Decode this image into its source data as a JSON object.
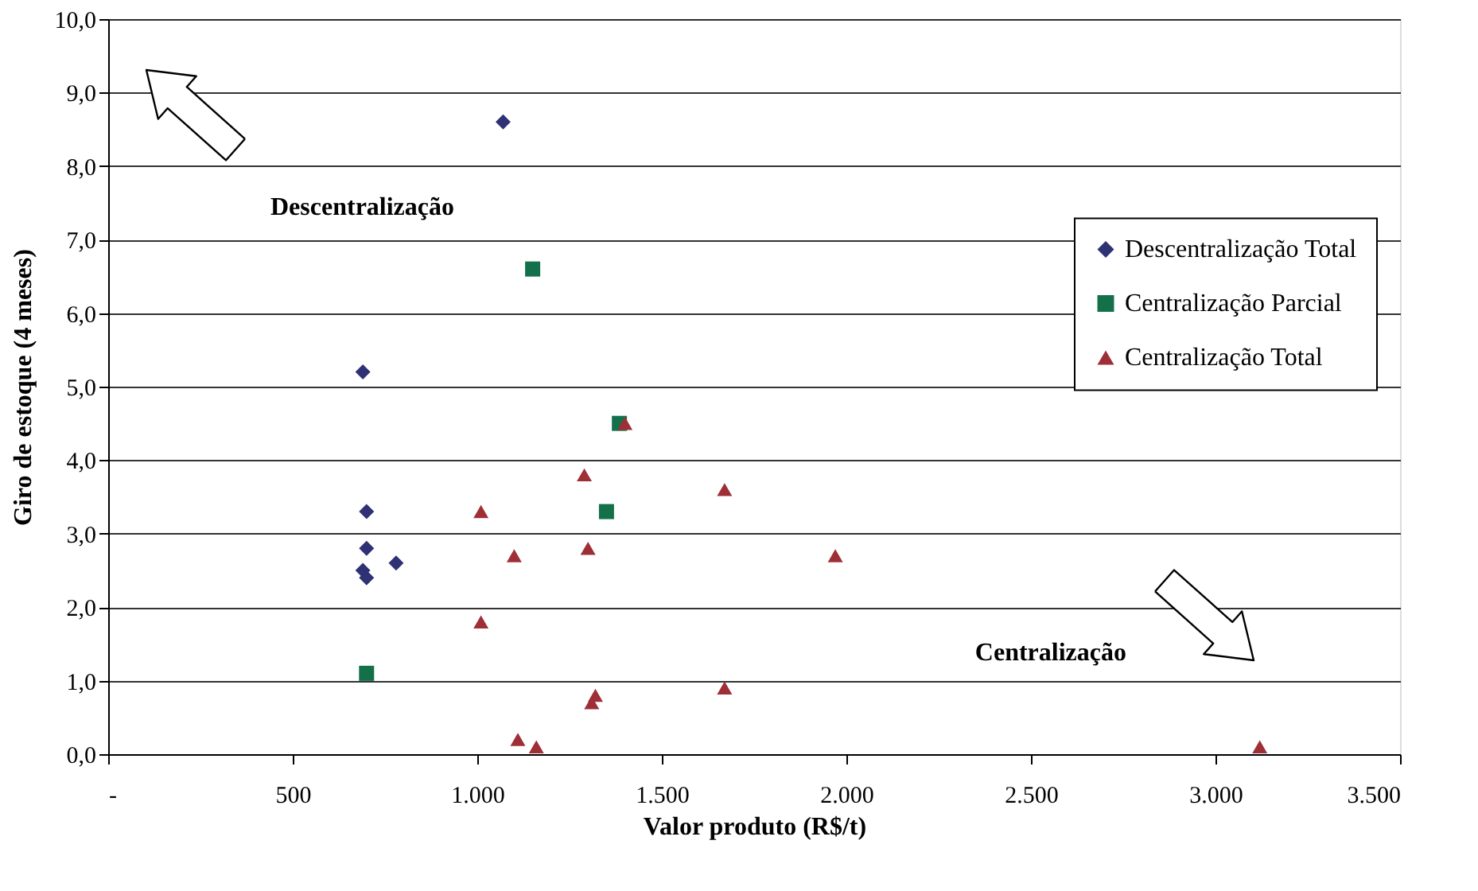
{
  "chart_data": {
    "type": "scatter",
    "xlabel": "Valor produto (R$/t)",
    "ylabel": "Giro de estoque (4 meses)",
    "xlim": [
      0,
      3500
    ],
    "xticks": [
      {
        "value": 0,
        "label": "-"
      },
      {
        "value": 500,
        "label": "500"
      },
      {
        "value": 1000,
        "label": "1.000"
      },
      {
        "value": 1500,
        "label": "1.500"
      },
      {
        "value": 2000,
        "label": "2.000"
      },
      {
        "value": 2500,
        "label": "2.500"
      },
      {
        "value": 3000,
        "label": "3.000"
      },
      {
        "value": 3500,
        "label": "3.500"
      }
    ],
    "ylim": [
      0,
      10
    ],
    "yticks": [
      {
        "value": 0,
        "label": "0,0"
      },
      {
        "value": 1,
        "label": "1,0"
      },
      {
        "value": 2,
        "label": "2,0"
      },
      {
        "value": 3,
        "label": "3,0"
      },
      {
        "value": 4,
        "label": "4,0"
      },
      {
        "value": 5,
        "label": "5,0"
      },
      {
        "value": 6,
        "label": "6,0"
      },
      {
        "value": 7,
        "label": "7,0"
      },
      {
        "value": 8,
        "label": "8,0"
      },
      {
        "value": 9,
        "label": "9,0"
      },
      {
        "value": 10,
        "label": "10,0"
      }
    ],
    "grid": "y",
    "legend": "right",
    "annotations": [
      "Descentralização",
      "Centralização"
    ],
    "series": [
      {
        "name": "Descentralização Total",
        "color": "#2e3173",
        "marker": "diamond",
        "x": [
          1070,
          690,
          700,
          700,
          690,
          700,
          780
        ],
        "values": [
          8.6,
          5.2,
          3.3,
          2.8,
          2.5,
          2.4,
          2.6
        ]
      },
      {
        "name": "Centralização Parcial",
        "color": "#13704a",
        "marker": "square",
        "x": [
          1150,
          1385,
          1350,
          700
        ],
        "values": [
          6.6,
          4.5,
          3.3,
          1.1
        ]
      },
      {
        "name": "Centralização Total",
        "color": "#9e2f37",
        "marker": "triangle",
        "x": [
          1400,
          1290,
          1670,
          1010,
          1100,
          1300,
          1970,
          1010,
          1670,
          1320,
          1310,
          1110,
          1160,
          3120
        ],
        "values": [
          4.5,
          3.8,
          3.6,
          3.3,
          2.7,
          2.8,
          2.7,
          1.8,
          0.9,
          0.8,
          0.7,
          0.2,
          0.1,
          0.1
        ]
      }
    ]
  }
}
